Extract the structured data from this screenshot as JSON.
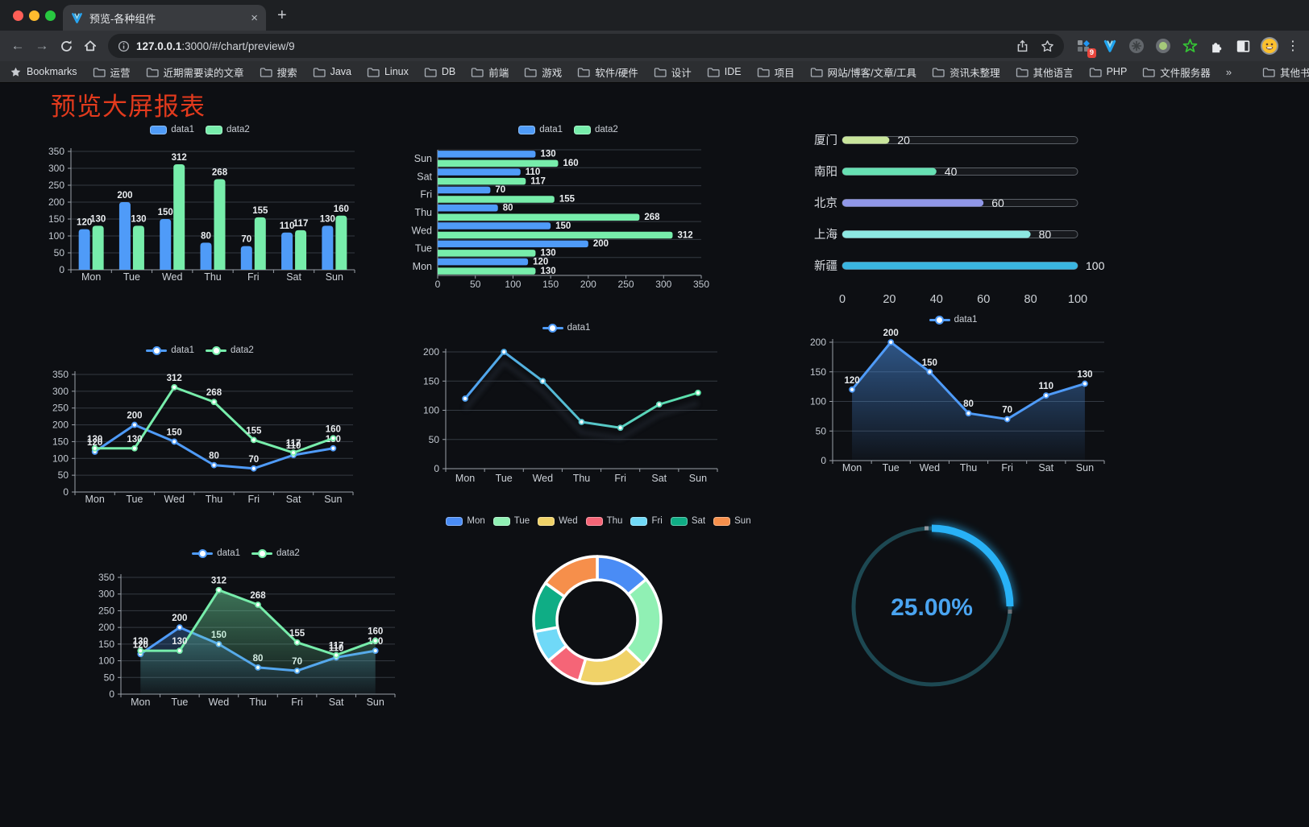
{
  "browser": {
    "traffic_lights": [
      "#ff5f57",
      "#febc2e",
      "#28c840"
    ],
    "tab": {
      "title": "预览-各种组件"
    },
    "icons": {
      "back": "←",
      "forward": "→",
      "close": "×",
      "new_tab": "+",
      "menu": "⋮"
    },
    "url": {
      "host": "127.0.0.1",
      "rest": ":3000/#/chart/preview/9"
    },
    "extensions": {
      "badge": "9"
    },
    "bookmarks": {
      "label": "Bookmarks",
      "items": [
        "运营",
        "近期需要读的文章",
        "搜索",
        "Java",
        "Linux",
        "DB",
        "前端",
        "游戏",
        "软件/硬件",
        "设计",
        "IDE",
        "项目",
        "网站/博客/文章/工具",
        "资讯未整理",
        "其他语言",
        "PHP",
        "文件服务器"
      ],
      "overflow": "»",
      "other": "其他书签"
    }
  },
  "page": {
    "title": "预览大屏报表",
    "title_color": "#e23a1d"
  },
  "chart_data": [
    {
      "id": "bar-vertical",
      "type": "bar",
      "categories": [
        "Mon",
        "Tue",
        "Wed",
        "Thu",
        "Fri",
        "Sat",
        "Sun"
      ],
      "series": [
        {
          "name": "data1",
          "color": "#4f9bf8",
          "values": [
            120,
            200,
            150,
            80,
            70,
            110,
            130
          ]
        },
        {
          "name": "data2",
          "color": "#77edab",
          "values": [
            130,
            130,
            312,
            268,
            155,
            117,
            160
          ]
        }
      ],
      "ylim": [
        0,
        350
      ],
      "ytick": 50,
      "legend": "chips",
      "value_labels": true
    },
    {
      "id": "bar-horizontal",
      "type": "bar-h",
      "categories": [
        "Mon",
        "Tue",
        "Wed",
        "Thu",
        "Fri",
        "Sat",
        "Sun"
      ],
      "display_order_top_to_bottom": [
        "Sun",
        "Sat",
        "Fri",
        "Thu",
        "Wed",
        "Tue",
        "Mon"
      ],
      "series": [
        {
          "name": "data1",
          "color": "#4f9bf8",
          "values": [
            120,
            200,
            150,
            80,
            70,
            110,
            130
          ]
        },
        {
          "name": "data2",
          "color": "#77edab",
          "values": [
            130,
            130,
            312,
            268,
            155,
            117,
            160
          ]
        }
      ],
      "xlim": [
        0,
        350
      ],
      "xtick": 50,
      "legend": "chips",
      "value_labels": true
    },
    {
      "id": "progress",
      "type": "bar",
      "subtype": "progress-list",
      "categories": [
        "厦门",
        "南阳",
        "北京",
        "上海",
        "新疆"
      ],
      "values": [
        20,
        40,
        60,
        80,
        100
      ],
      "colors": [
        "#c9e59c",
        "#67e0b3",
        "#9097e8",
        "#8de8e2",
        "#3ab5e0"
      ],
      "xlim": [
        0,
        100
      ],
      "xticks": [
        0,
        20,
        40,
        60,
        80,
        100
      ]
    },
    {
      "id": "line-dual",
      "type": "line",
      "categories": [
        "Mon",
        "Tue",
        "Wed",
        "Thu",
        "Fri",
        "Sat",
        "Sun"
      ],
      "series": [
        {
          "name": "data1",
          "color": "#4f9bf8",
          "values": [
            120,
            200,
            150,
            80,
            70,
            110,
            130
          ]
        },
        {
          "name": "data2",
          "color": "#77edab",
          "values": [
            130,
            130,
            312,
            268,
            155,
            117,
            160
          ]
        }
      ],
      "ylim": [
        0,
        350
      ],
      "ytick": 50,
      "legend": "line",
      "value_labels": true
    },
    {
      "id": "line-gradient",
      "type": "line",
      "categories": [
        "Mon",
        "Tue",
        "Wed",
        "Thu",
        "Fri",
        "Sat",
        "Sun"
      ],
      "series": [
        {
          "name": "data1",
          "gradient": [
            "#4f9bf8",
            "#5de9a2"
          ],
          "values": [
            120,
            200,
            150,
            80,
            70,
            110,
            130
          ]
        }
      ],
      "ylim": [
        0,
        200
      ],
      "ytick": 50,
      "legend": "line",
      "value_labels": false,
      "shadow": true
    },
    {
      "id": "line-area",
      "type": "line",
      "categories": [
        "Mon",
        "Tue",
        "Wed",
        "Thu",
        "Fri",
        "Sat",
        "Sun"
      ],
      "series": [
        {
          "name": "data1",
          "color": "#4f9bf8",
          "values": [
            120,
            200,
            150,
            80,
            70,
            110,
            130
          ],
          "area": true
        }
      ],
      "ylim": [
        0,
        200
      ],
      "ytick": 50,
      "legend": "line",
      "value_labels": true
    },
    {
      "id": "line-dual-area",
      "type": "line",
      "categories": [
        "Mon",
        "Tue",
        "Wed",
        "Thu",
        "Fri",
        "Sat",
        "Sun"
      ],
      "series": [
        {
          "name": "data1",
          "color": "#4f9bf8",
          "values": [
            120,
            200,
            150,
            80,
            70,
            110,
            130
          ],
          "area": true
        },
        {
          "name": "data2",
          "color": "#77edab",
          "values": [
            130,
            130,
            312,
            268,
            155,
            117,
            160
          ],
          "area": true
        }
      ],
      "ylim": [
        0,
        350
      ],
      "ytick": 50,
      "legend": "line",
      "value_labels": true
    },
    {
      "id": "donut",
      "type": "pie",
      "labels": [
        "Mon",
        "Tue",
        "Wed",
        "Thu",
        "Fri",
        "Sat",
        "Sun"
      ],
      "values": [
        120,
        200,
        150,
        80,
        70,
        110,
        130
      ],
      "colors": [
        "#4a8cf5",
        "#90f0b4",
        "#f0d268",
        "#f56577",
        "#70d9f7",
        "#0fad85",
        "#f68f4b"
      ],
      "inner_radius_ratio": 0.63,
      "legend": "chips"
    },
    {
      "id": "gauge",
      "type": "gauge",
      "value": 25,
      "display": "25.00%",
      "color": "#28b1f6",
      "track": "#1d4852",
      "text_color": "#4aa4f0"
    }
  ]
}
